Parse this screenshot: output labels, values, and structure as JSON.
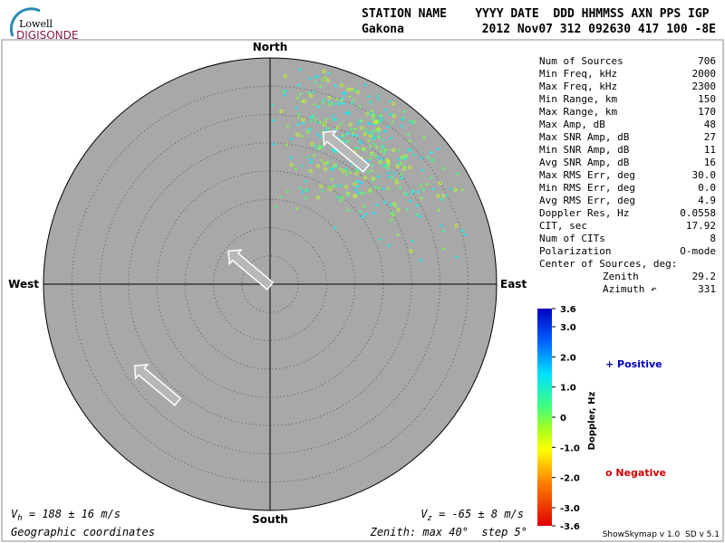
{
  "header": {
    "logo_top": "Lowell",
    "logo_bottom": "DIGISONDE",
    "row1": "STATION NAME    YYYY DATE  DDD HHMMSS AXN PPS IGP",
    "station": "Gakona",
    "row2": "2012 Nov07 312 092630 417 100 -8E"
  },
  "compass": {
    "north": "North",
    "south": "South",
    "east": "East",
    "west": "West"
  },
  "stats": {
    "rows": [
      [
        "Num of Sources",
        "706"
      ],
      [
        "Min Freq, kHz",
        "2000"
      ],
      [
        "Max Freq, kHz",
        "2300"
      ],
      [
        "Min Range, km",
        "150"
      ],
      [
        "Max Range, km",
        "170"
      ],
      [
        "Max Amp, dB",
        "48"
      ],
      [
        "Max SNR Amp, dB",
        "27"
      ],
      [
        "Min SNR Amp, dB",
        "11"
      ],
      [
        "Avg SNR Amp, dB",
        "16"
      ],
      [
        "Max RMS Err, deg",
        "30.0"
      ],
      [
        "Min RMS Err, deg",
        "0.0"
      ],
      [
        "Avg RMS Err, deg",
        "4.9"
      ],
      [
        "Doppler Res, Hz",
        "0.0558"
      ],
      [
        "CIT, sec",
        "17.92"
      ],
      [
        "Num of CITs",
        "8"
      ],
      [
        "Polarization",
        "O-mode"
      ]
    ],
    "center_title": "Center of Sources, deg:",
    "zenith_label": "Zenith",
    "zenith_value": "29.2",
    "azimuth_label": "Azimuth ↶",
    "azimuth_value": "331"
  },
  "colorbar": {
    "title": "Doppler, Hz",
    "lim": [
      -3.6,
      3.6
    ],
    "ticks": [
      3.6,
      {
        "value": 3,
        "label": "3.0"
      },
      {
        "value": 2,
        "label": "2.0"
      },
      {
        "value": 1,
        "label": "1.0"
      },
      0,
      {
        "value": -1,
        "label": "-1.0"
      },
      {
        "value": -2,
        "label": "-2.0"
      },
      {
        "value": -3,
        "label": "-3.0"
      },
      -3.6
    ]
  },
  "legend": {
    "positive": "+ Positive",
    "negative": "o Negative"
  },
  "footer": {
    "vh_symbol": "V",
    "vh_sub": "h",
    "vh_text": " = 188 ± 16 m/s",
    "vz_symbol": "V",
    "vz_sub": "z",
    "vz_text": " = -65 ± 8 m/s",
    "coords": "Geographic coordinates",
    "zenith": "Zenith: max 40°  step 5°",
    "version": "ShowSkymap v 1.0  SD v 5.1"
  }
}
